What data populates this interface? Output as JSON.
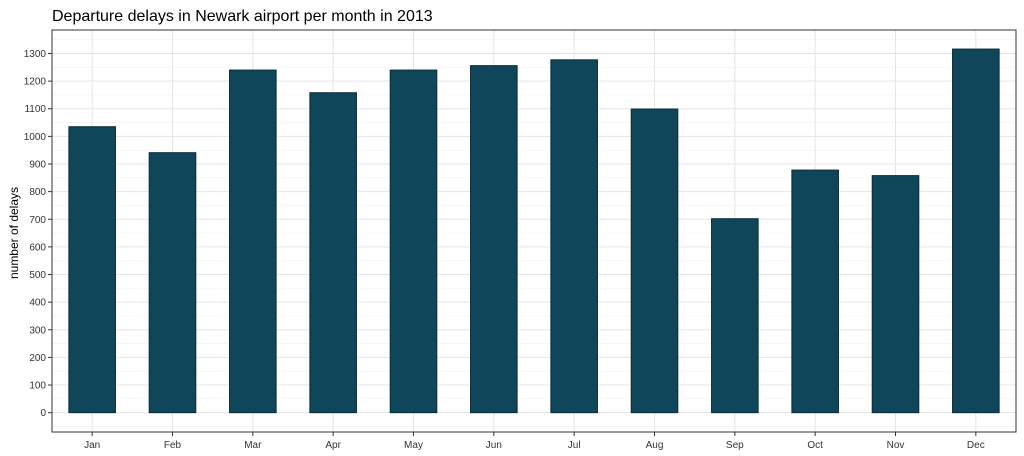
{
  "chart_data": {
    "type": "bar",
    "title": "Departure delays in Newark airport per month in 2013",
    "xlabel": "",
    "ylabel": "number of delays",
    "categories": [
      "Jan",
      "Feb",
      "Mar",
      "Apr",
      "May",
      "Jun",
      "Jul",
      "Aug",
      "Sep",
      "Oct",
      "Nov",
      "Dec"
    ],
    "values": [
      1035,
      941,
      1240,
      1158,
      1240,
      1256,
      1277,
      1099,
      702,
      878,
      858,
      1316
    ],
    "ylim": [
      -70,
      1385
    ],
    "yticks": [
      0,
      100,
      200,
      300,
      400,
      500,
      600,
      700,
      800,
      900,
      1000,
      1100,
      1200,
      1300
    ],
    "grid": true,
    "legend": "none",
    "colors": {
      "bar_fill": "#0f4659",
      "bar_stroke": "#0a2c38",
      "grid_major": "#e5e5e5",
      "grid_minor": "#f2f2f2",
      "panel_border": "#333333"
    }
  }
}
